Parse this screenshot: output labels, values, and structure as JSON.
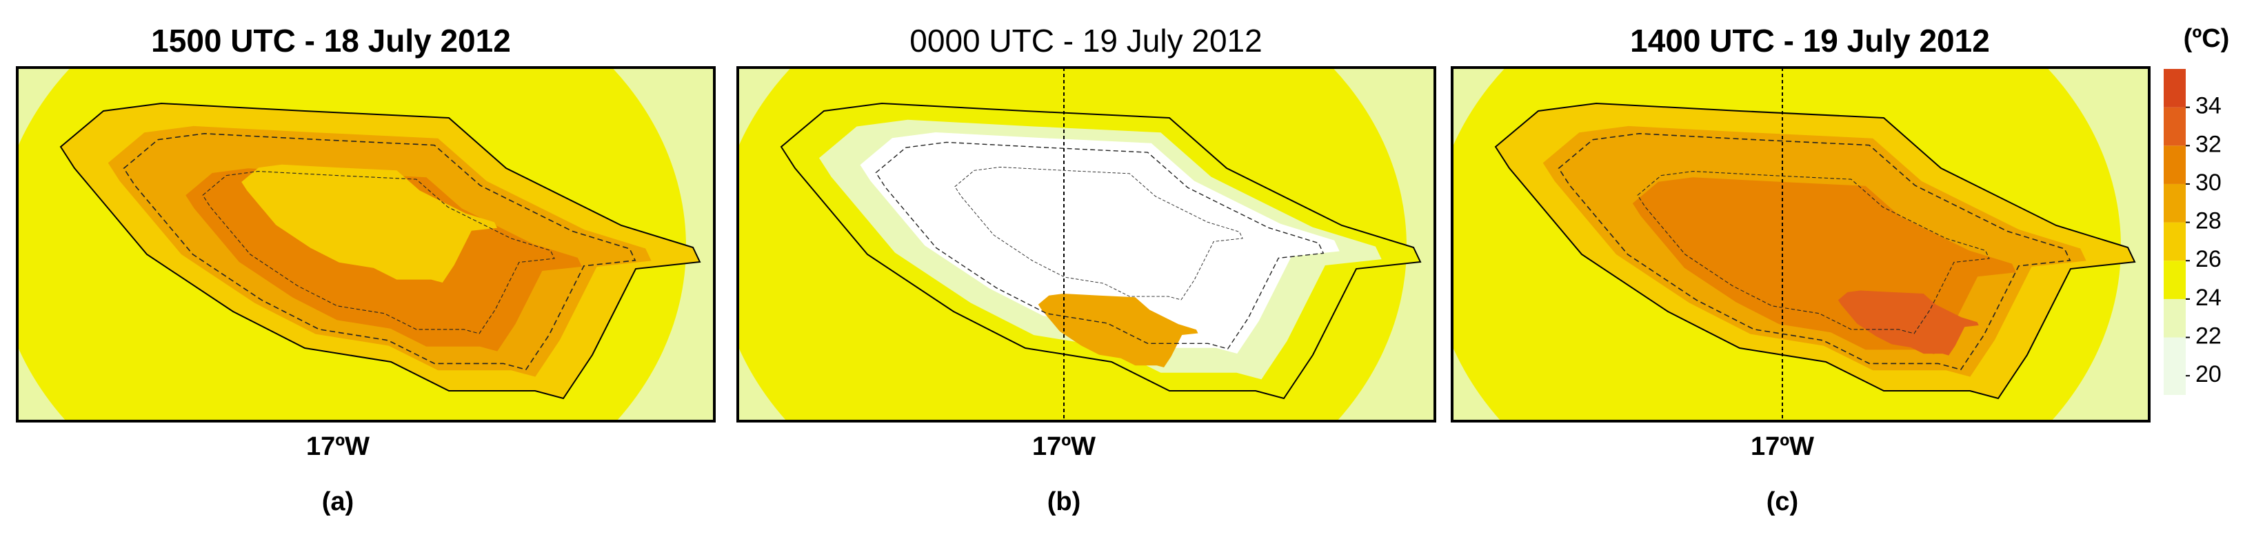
{
  "panels": [
    {
      "title": "1500 UTC - 18 July 2012",
      "x_label": "17ºW",
      "letter": "(a)"
    },
    {
      "title": "0000 UTC - 19 July 2012",
      "x_label": "17ºW",
      "letter": "(b)"
    },
    {
      "title": "1400 UTC - 19 July 2012",
      "x_label": "17ºW",
      "letter": "(c)"
    }
  ],
  "colorbar": {
    "unit": "(ºC)",
    "levels": [
      19,
      22,
      24,
      26,
      28,
      30,
      32,
      34,
      36
    ],
    "colors": [
      "#eefae6",
      "#eaf8b8",
      "#f0f000",
      "#f5cc00",
      "#eea600",
      "#e88400",
      "#e2601a",
      "#d8461a"
    ],
    "ticks": [
      20,
      22,
      24,
      26,
      28,
      30,
      32,
      34
    ]
  }
}
